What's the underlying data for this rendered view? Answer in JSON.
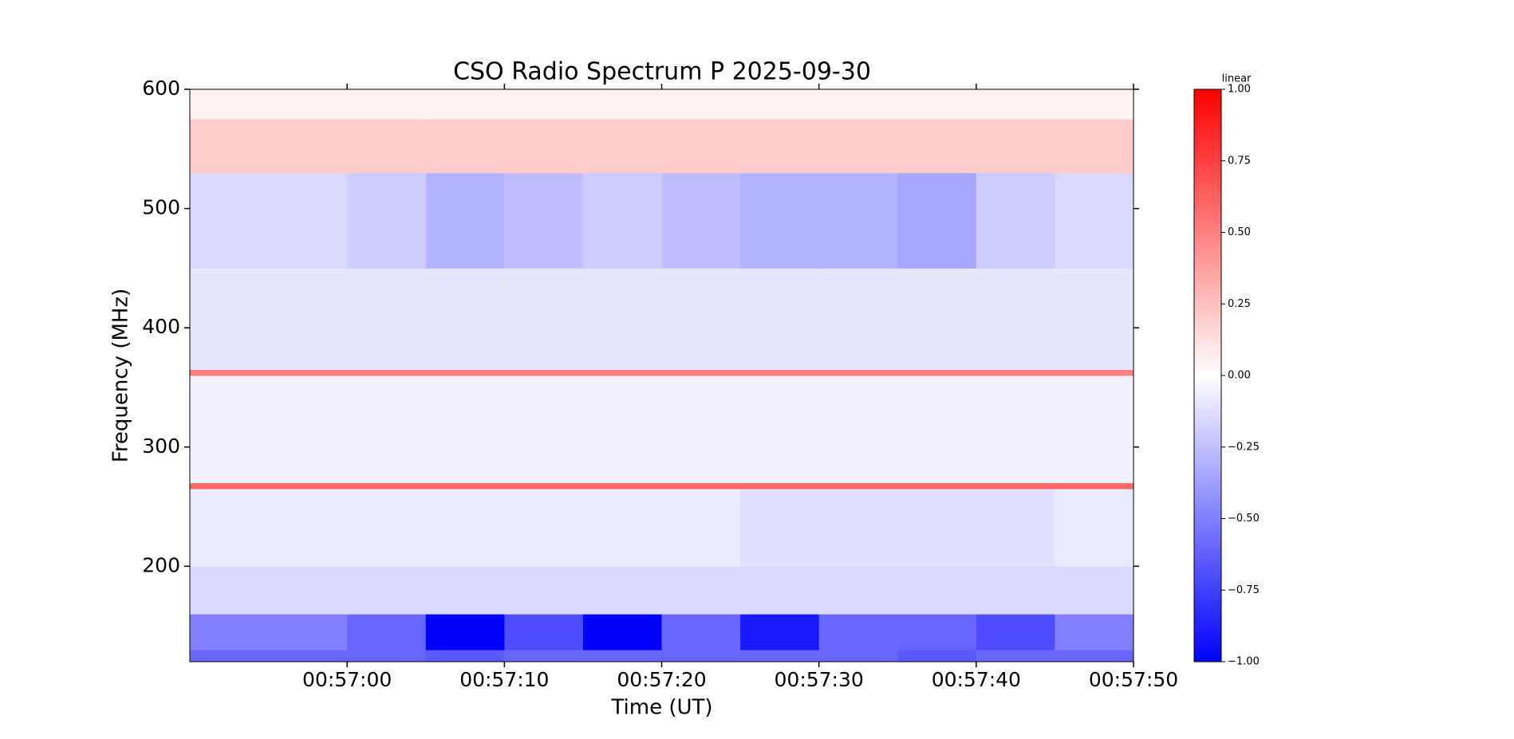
{
  "chart_data": {
    "type": "heatmap",
    "title": "CSO Radio Spectrum P 2025-09-30",
    "x_label": "Time (UT)",
    "y_label": "Frequency (MHz)",
    "x_edges": [
      "00:56:50",
      "00:56:55",
      "00:57:00",
      "00:57:05",
      "00:57:10",
      "00:57:15",
      "00:57:20",
      "00:57:25",
      "00:57:30",
      "00:57:35",
      "00:57:40",
      "00:57:45",
      "00:57:50"
    ],
    "y_edges": [
      120,
      130,
      160,
      200,
      265,
      270,
      360,
      365,
      450,
      530,
      575,
      600
    ],
    "z": [
      [
        -0.6,
        -0.6,
        -0.6,
        -0.65,
        -0.6,
        -0.6,
        -0.6,
        -0.6,
        -0.6,
        -0.65,
        -0.6,
        -0.6
      ],
      [
        -0.5,
        -0.5,
        -0.6,
        -1,
        -0.7,
        -1,
        -0.6,
        -0.9,
        -0.6,
        -0.6,
        -0.7,
        -0.5
      ],
      [
        -0.15,
        -0.15,
        -0.15,
        -0.15,
        -0.15,
        -0.15,
        -0.15,
        -0.15,
        -0.15,
        -0.15,
        -0.15,
        -0.15
      ],
      [
        -0.08,
        -0.08,
        -0.08,
        -0.08,
        -0.08,
        -0.08,
        -0.08,
        -0.12,
        -0.12,
        -0.12,
        -0.12,
        -0.08
      ],
      [
        0.6,
        0.6,
        0.6,
        0.6,
        0.6,
        0.6,
        0.6,
        0.6,
        0.6,
        0.6,
        0.6,
        0.6
      ],
      [
        -0.05,
        -0.05,
        -0.05,
        -0.05,
        -0.05,
        -0.05,
        -0.05,
        -0.05,
        -0.05,
        -0.05,
        -0.05,
        -0.05
      ],
      [
        0.5,
        0.5,
        0.5,
        0.5,
        0.5,
        0.5,
        0.5,
        0.5,
        0.5,
        0.5,
        0.5,
        0.5
      ],
      [
        -0.1,
        -0.1,
        -0.1,
        -0.1,
        -0.1,
        -0.1,
        -0.1,
        -0.1,
        -0.1,
        -0.1,
        -0.1,
        -0.1
      ],
      [
        -0.15,
        -0.15,
        -0.2,
        -0.3,
        -0.25,
        -0.2,
        -0.25,
        -0.3,
        -0.3,
        -0.35,
        -0.2,
        -0.15
      ],
      [
        0.2,
        0.2,
        0.2,
        0.2,
        0.2,
        0.2,
        0.2,
        0.2,
        0.2,
        0.2,
        0.2,
        0.2
      ],
      [
        0.05,
        0.05,
        0.05,
        0.05,
        0.05,
        0.05,
        0.05,
        0.05,
        0.05,
        0.05,
        0.05,
        0.05
      ]
    ],
    "xlim": [
      "00:56:50",
      "00:57:50"
    ],
    "xticks": [
      "00:57:00",
      "00:57:10",
      "00:57:20",
      "00:57:30",
      "00:57:40",
      "00:57:50"
    ],
    "ylim": [
      120,
      600
    ],
    "yticks": [
      200,
      300,
      400,
      500,
      600
    ],
    "colormap": "bwr",
    "colorbar_label": "linear",
    "clim": [
      -1,
      1
    ],
    "colorbar_ticks": [
      {
        "value": -1,
        "label": "−1.00"
      },
      {
        "value": -0.75,
        "label": "−0.75"
      },
      {
        "value": -0.5,
        "label": "−0.50"
      },
      {
        "value": -0.25,
        "label": "−0.25"
      },
      {
        "value": 0,
        "label": "0.00"
      },
      {
        "value": 0.25,
        "label": "0.25"
      },
      {
        "value": 0.5,
        "label": "0.50"
      },
      {
        "value": 0.75,
        "label": "0.75"
      },
      {
        "value": 1,
        "label": "1.00"
      }
    ]
  }
}
